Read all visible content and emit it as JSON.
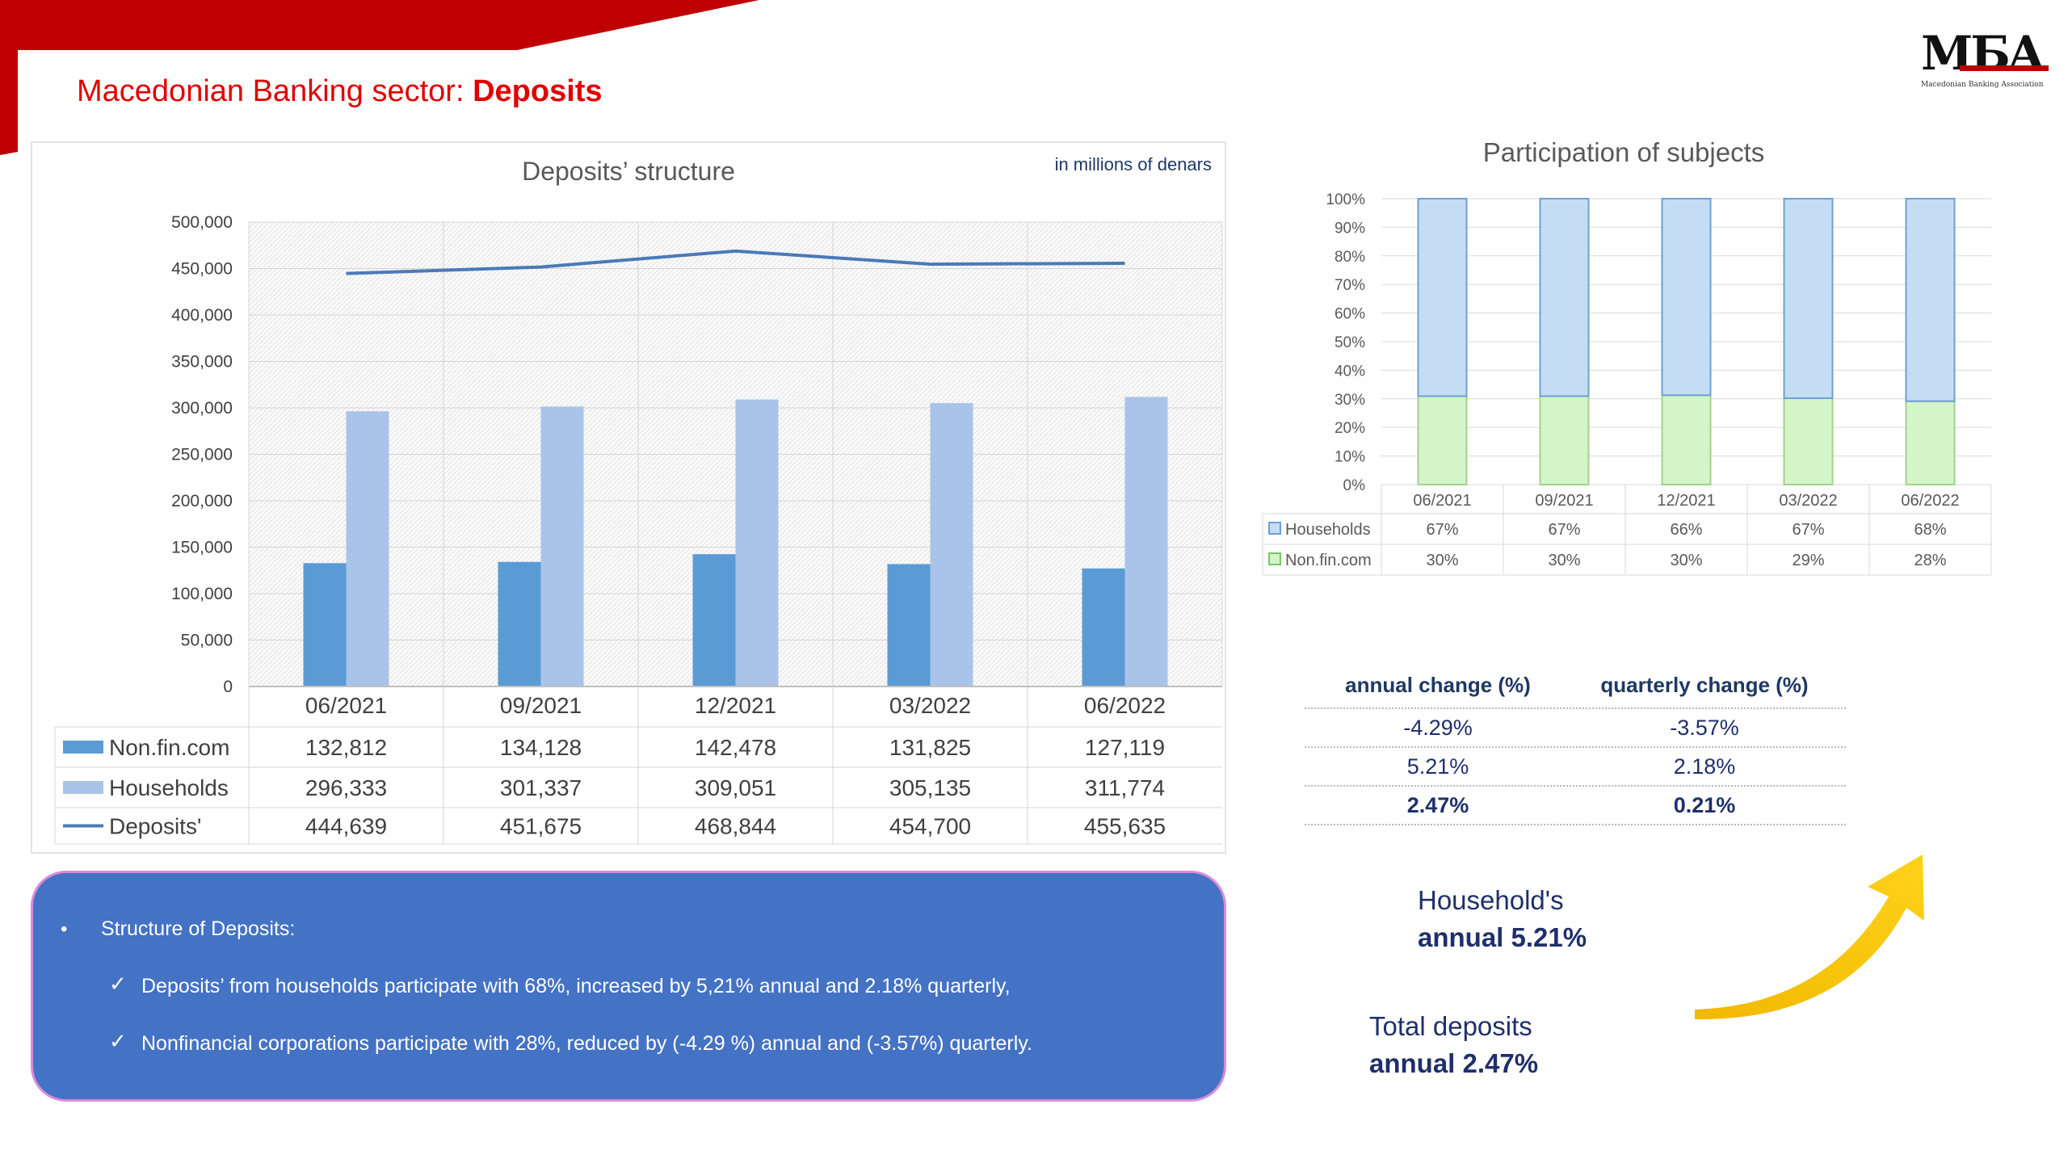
{
  "slide": {
    "title_prefix": "Macedonian Banking sector: ",
    "title_bold": "Deposits",
    "logo_text": "MБA",
    "logo_caption": "Macedonian Banking Association",
    "colors": {
      "brand_red": "#c00000",
      "title_red": "#e00000",
      "navy": "#1f2f6b",
      "box_blue": "#4472c4"
    }
  },
  "chart_data": [
    {
      "type": "bar",
      "title": "Deposits’ structure",
      "unit_note": "in millions of denars",
      "categories": [
        "06/2021",
        "09/2021",
        "12/2021",
        "03/2022",
        "06/2022"
      ],
      "series": [
        {
          "name": "Non.fin.com",
          "type": "bar",
          "color": "#5b9bd5",
          "values": [
            132812,
            134128,
            142478,
            131825,
            127119
          ],
          "labels": [
            "132,812",
            "134,128",
            "142,478",
            "131,825",
            "127,119"
          ]
        },
        {
          "name": "Households",
          "type": "bar",
          "color": "#a9c4e8",
          "values": [
            296333,
            301337,
            309051,
            305135,
            311774
          ],
          "labels": [
            "296,333",
            "301,337",
            "309,051",
            "305,135",
            "311,774"
          ]
        },
        {
          "name": "Deposits'",
          "type": "line",
          "color": "#4a7ab8",
          "values": [
            444639,
            451675,
            468844,
            454700,
            455635
          ],
          "labels": [
            "444,639",
            "451,675",
            "468,844",
            "454,700",
            "455,635"
          ]
        }
      ],
      "ylim": [
        0,
        500000
      ],
      "yticks": [
        0,
        50000,
        100000,
        150000,
        200000,
        250000,
        300000,
        350000,
        400000,
        450000,
        500000
      ],
      "ytick_labels": [
        "0",
        "50,000",
        "100,000",
        "150,000",
        "200,000",
        "250,000",
        "300,000",
        "350,000",
        "400,000",
        "450,000",
        "500,000"
      ],
      "grid": true,
      "legend": "data-table"
    },
    {
      "type": "bar",
      "stacked": "percent",
      "title": "Participation of subjects",
      "categories": [
        "06/2021",
        "09/2021",
        "12/2021",
        "03/2022",
        "06/2022"
      ],
      "series": [
        {
          "name": "Households",
          "color": "#c5dcf5",
          "values": [
            67,
            67,
            66,
            67,
            68
          ],
          "labels": [
            "67%",
            "67%",
            "66%",
            "67%",
            "68%"
          ]
        },
        {
          "name": "Non.fin.com",
          "color": "#d3f5c8",
          "values": [
            30,
            30,
            30,
            29,
            28
          ],
          "labels": [
            "30%",
            "30%",
            "30%",
            "29%",
            "28%"
          ]
        }
      ],
      "ylim": [
        0,
        100
      ],
      "yticks": [
        0,
        10,
        20,
        30,
        40,
        50,
        60,
        70,
        80,
        90,
        100
      ],
      "ytick_labels": [
        "0%",
        "10%",
        "20%",
        "30%",
        "40%",
        "50%",
        "60%",
        "70%",
        "80%",
        "90%",
        "100%"
      ],
      "grid": true,
      "legend": "data-table"
    }
  ],
  "changes": {
    "header_annual": "annual change (%)",
    "header_quarterly": "quarterly change (%)",
    "rows": [
      {
        "annual": "-4.29%",
        "quarterly": "-3.57%"
      },
      {
        "annual": "5.21%",
        "quarterly": "2.18%"
      },
      {
        "annual": "2.47%",
        "quarterly": "0.21%"
      }
    ]
  },
  "info_box": {
    "bullet": "•",
    "heading": "Structure of Deposits:",
    "check": "✓",
    "items": [
      "Deposits’ from households participate with 68%, increased by 5,21% annual and 2.18% quarterly,",
      "Nonfinancial corporations participate with 28%, reduced by (-4.29 %) annual  and (-3.57%) quarterly."
    ]
  },
  "callouts": {
    "households_line1": "Household's",
    "households_line2": "annual 5.21%",
    "total_line1": "Total deposits",
    "total_line2": "annual 2.47%"
  }
}
